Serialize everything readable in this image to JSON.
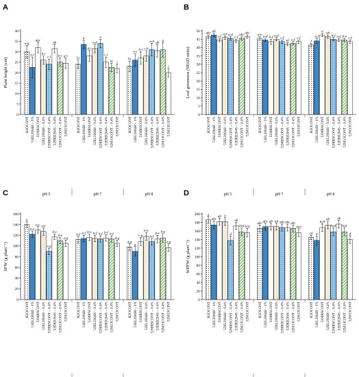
{
  "categories": [
    "H2OCONT",
    "51EL2004H – 1%",
    "51MRSCONT",
    "52EL2004H – 0.4%",
    "52MRSCONT – 0.4%",
    "52ERD204S – 0.4%",
    "52M13CONT – 0.4%",
    "52M13CONT"
  ],
  "groups": [
    "pH 5",
    "pH 7",
    "pH 8"
  ],
  "colors": [
    "#ffffff",
    "#3d87c7",
    "#ffffff",
    "#f3ebda",
    "#6fb2e3",
    "#ffffff",
    "#8fc77c",
    "#ffffff"
  ],
  "patterns": [
    "dots",
    "solid",
    "blank",
    "solid",
    "grid",
    "blank",
    "stripe",
    "blank"
  ],
  "chart_data": [
    {
      "panel": "A",
      "type": "bar",
      "ylabel": "Plant height (cm)",
      "ylim": [
        0,
        40
      ],
      "yticks": [
        0,
        5,
        10,
        15,
        20,
        25,
        30,
        35,
        40
      ],
      "series": [
        {
          "group": "pH 5",
          "values": [
            30,
            22.5,
            32,
            26,
            24,
            31.5,
            25,
            24.5
          ],
          "errors": [
            3,
            5,
            2.5,
            2,
            2.5,
            2,
            2,
            2.5
          ],
          "labels": [
            "a-g",
            "a-i",
            "abc",
            "b-i",
            "c-i",
            "ab",
            "b-i",
            "g-i"
          ]
        },
        {
          "group": "pH 7",
          "values": [
            24,
            33.5,
            28,
            31.5,
            34,
            25,
            22.5,
            22
          ],
          "errors": [
            2,
            2,
            2.5,
            2,
            2,
            2.5,
            2,
            2
          ],
          "labels": [
            "f-i",
            "a",
            "d-i",
            "a-d",
            "a",
            "c-i",
            "hi",
            "i"
          ]
        },
        {
          "group": "pH 8",
          "values": [
            23,
            26,
            27,
            28,
            31,
            30.5,
            31,
            20
          ],
          "errors": [
            2.5,
            3,
            3,
            2.5,
            3,
            3,
            3.5,
            2
          ],
          "labels": [
            "hi",
            "e-i",
            "b-i",
            "c-h",
            "a-h",
            "ab",
            "a",
            "i"
          ]
        }
      ]
    },
    {
      "panel": "B",
      "type": "bar",
      "ylabel": "Leaf greenness (SPAD units)",
      "ylim": [
        0,
        50
      ],
      "yticks": [
        0,
        5,
        10,
        15,
        20,
        25,
        30,
        35,
        40,
        45,
        50
      ],
      "series": [
        {
          "group": "pH 5",
          "values": [
            46.5,
            47.5,
            44.5,
            46,
            45.5,
            44,
            45.5,
            46.5
          ],
          "errors": [
            1,
            1,
            1,
            1,
            1,
            1,
            1,
            1
          ],
          "labels": [
            "abc",
            "ab",
            "c-f",
            "a-e",
            "a-d",
            "c-f",
            "abc",
            "abc"
          ]
        },
        {
          "group": "pH 7",
          "values": [
            45.5,
            44.5,
            43.5,
            45,
            43.5,
            42,
            42.5,
            43.5
          ],
          "errors": [
            1,
            1,
            1.5,
            1,
            1,
            1,
            1,
            1
          ],
          "labels": [
            "a-e",
            "a-d",
            "b-f",
            "a-d",
            "c-f",
            "ef",
            "c-f",
            "c-f"
          ]
        },
        {
          "group": "pH 8",
          "values": [
            41.5,
            44,
            47.5,
            46.5,
            45,
            44.5,
            44.5,
            43.5
          ],
          "errors": [
            1,
            1.5,
            1,
            1,
            1,
            1,
            1,
            1
          ],
          "labels": [
            "f",
            "a-f",
            "a",
            "ab",
            "b-f",
            "a-e",
            "b-e",
            "c-f"
          ]
        }
      ]
    },
    {
      "panel": "C",
      "type": "bar",
      "ylabel": "SFW (g plant⁻¹)",
      "ylim": [
        0,
        160
      ],
      "yticks": [
        0,
        20,
        40,
        60,
        80,
        100,
        120,
        140,
        160
      ],
      "series": [
        {
          "group": "pH 5",
          "values": [
            140,
            122,
            130,
            127,
            90,
            117,
            110,
            105
          ],
          "errors": [
            5,
            6,
            6,
            7,
            6,
            5,
            6,
            6
          ],
          "labels": [
            "a",
            "a-e",
            "a-c",
            "a-e",
            "e-g",
            "b-e",
            "b-e",
            "e-g"
          ]
        },
        {
          "group": "pH 7",
          "values": [
            112,
            114,
            116,
            114,
            113,
            115,
            113,
            105
          ],
          "errors": [
            6,
            6,
            6,
            6,
            6,
            6,
            6,
            6
          ],
          "labels": [
            "b-f",
            "b-f",
            "b-e",
            "b-f",
            "b-f",
            "b-f",
            "b-f",
            "d-g"
          ]
        },
        {
          "group": "pH 8",
          "values": [
            98,
            90,
            108,
            118,
            108,
            113,
            115,
            97
          ],
          "errors": [
            6,
            9,
            8,
            7,
            6,
            7,
            8,
            7
          ],
          "labels": [
            "d-g",
            "g",
            "c-g",
            "b-e",
            "b-f",
            "b-e",
            "b-e",
            "e-g"
          ]
        }
      ]
    },
    {
      "panel": "D",
      "type": "bar",
      "ylabel": "WPFW (g plant⁻¹)",
      "ylim": [
        0,
        200
      ],
      "yticks": [
        0,
        20,
        40,
        60,
        80,
        100,
        120,
        140,
        160,
        180,
        200
      ],
      "series": [
        {
          "group": "pH 5",
          "values": [
            186,
            174,
            182,
            182,
            138,
            172,
            158,
            156
          ],
          "errors": [
            8,
            9,
            8,
            9,
            10,
            8,
            9,
            10
          ],
          "labels": [
            "a",
            "abc",
            "ab",
            "a",
            "d",
            "ab",
            "bcd",
            "bcd"
          ]
        },
        {
          "group": "pH 7",
          "values": [
            166,
            170,
            170,
            170,
            168,
            168,
            166,
            156
          ],
          "errors": [
            8,
            8,
            8,
            8,
            8,
            8,
            8,
            9
          ],
          "labels": [
            "abc",
            "abc",
            "ab",
            "ab",
            "abc",
            "abc",
            "abc",
            "bcd"
          ]
        },
        {
          "group": "pH 8",
          "values": [
            145,
            138,
            168,
            174,
            158,
            176,
            158,
            140
          ],
          "errors": [
            5,
            10,
            9,
            9,
            9,
            9,
            9,
            9
          ],
          "labels": [
            "cd",
            "d",
            "bcd",
            "ab",
            "bcd",
            "ab",
            "bcd",
            "d"
          ]
        }
      ]
    }
  ]
}
